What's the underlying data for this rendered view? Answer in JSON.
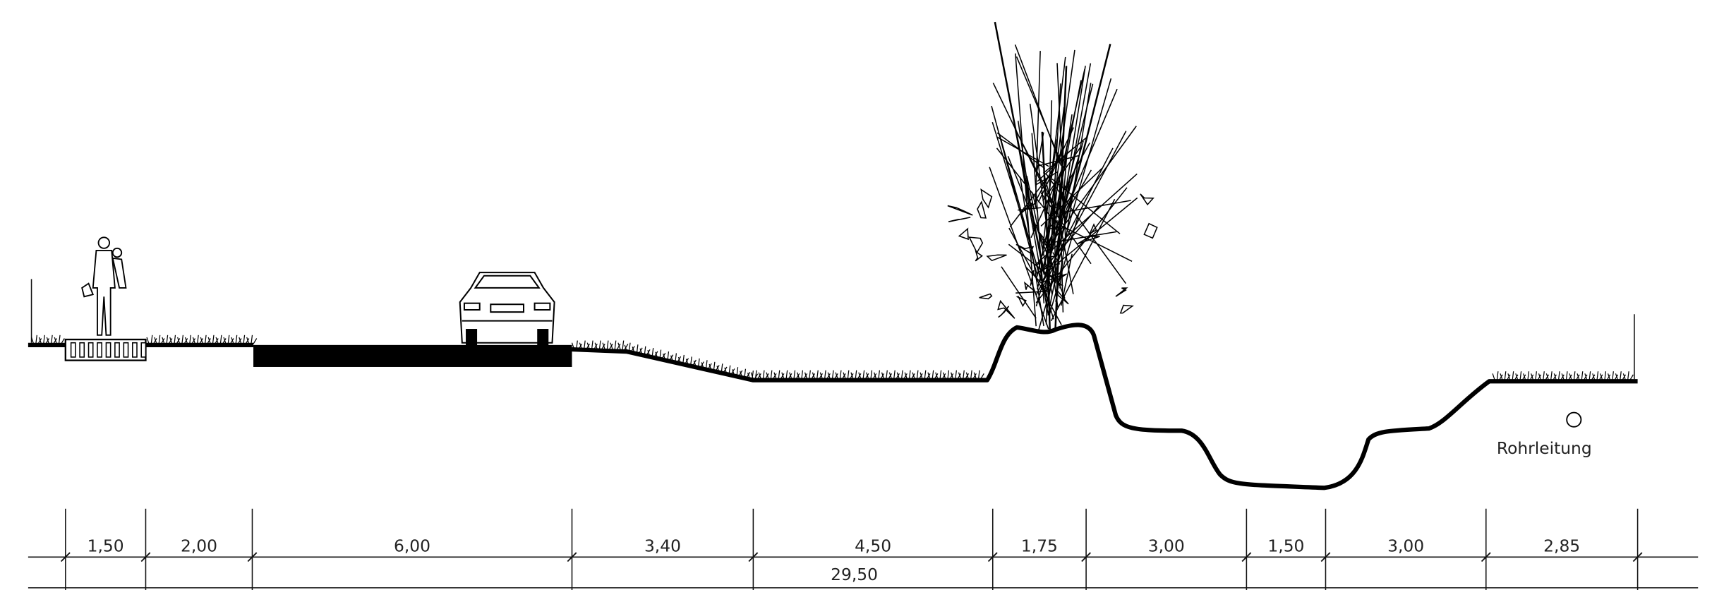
{
  "dimensions": {
    "segments": [
      "1,50",
      "2,00",
      "6,00",
      "3,40",
      "4,50",
      "1,75",
      "3,00",
      "1,50",
      "3,00",
      "2,85"
    ],
    "total": "29,50"
  },
  "labels": {
    "pipe": "Rohrleitung"
  }
}
